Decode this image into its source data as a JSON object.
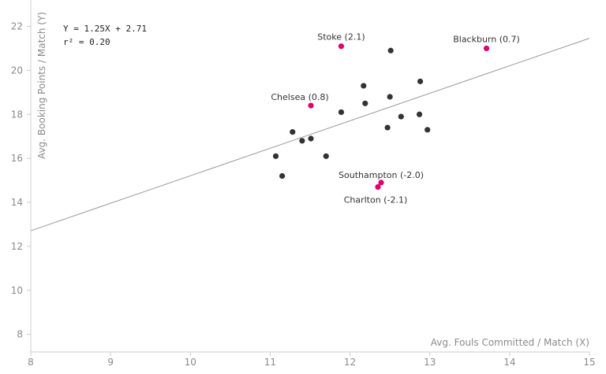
{
  "chart_data": {
    "type": "scatter",
    "title": "",
    "xlabel": "Avg. Fouls Committed / Match (X)",
    "ylabel": "Avg. Booking Points / Match (Y)",
    "xlim": [
      8,
      15
    ],
    "ylim": [
      7.2,
      23.2
    ],
    "xticks": [
      8,
      9,
      10,
      11,
      12,
      13,
      14,
      15
    ],
    "yticks": [
      8,
      10,
      12,
      14,
      16,
      18,
      20,
      22
    ],
    "regression": {
      "slope": 1.25,
      "intercept": 2.71,
      "equation_text": "Y = 1.25X + 2.71",
      "r2_text": "r² = 0.20"
    },
    "colors": {
      "regular": "#333333",
      "highlight": "#e0006e",
      "line": "#999999",
      "axis": "#cccccc"
    },
    "points": [
      {
        "x": 11.07,
        "y": 16.1
      },
      {
        "x": 11.15,
        "y": 15.2
      },
      {
        "x": 11.28,
        "y": 17.2
      },
      {
        "x": 11.4,
        "y": 16.8
      },
      {
        "x": 11.51,
        "y": 16.9
      },
      {
        "x": 11.7,
        "y": 16.1
      },
      {
        "x": 11.89,
        "y": 18.1
      },
      {
        "x": 12.17,
        "y": 19.3
      },
      {
        "x": 12.19,
        "y": 18.5
      },
      {
        "x": 12.47,
        "y": 17.4
      },
      {
        "x": 12.5,
        "y": 18.8
      },
      {
        "x": 12.51,
        "y": 20.9
      },
      {
        "x": 12.64,
        "y": 17.9
      },
      {
        "x": 12.87,
        "y": 18.0
      },
      {
        "x": 12.88,
        "y": 19.5
      },
      {
        "x": 12.97,
        "y": 17.3
      }
    ],
    "highlighted": [
      {
        "x": 11.89,
        "y": 21.1,
        "label": "Stoke (2.1)"
      },
      {
        "x": 13.71,
        "y": 21.0,
        "label": "Blackburn (0.7)"
      },
      {
        "x": 11.51,
        "y": 18.4,
        "label": "Chelsea (0.8)"
      },
      {
        "x": 12.39,
        "y": 14.9,
        "label": "Southampton (-2.0)"
      },
      {
        "x": 12.35,
        "y": 14.7,
        "label": "Charlton (-2.1)"
      }
    ]
  }
}
